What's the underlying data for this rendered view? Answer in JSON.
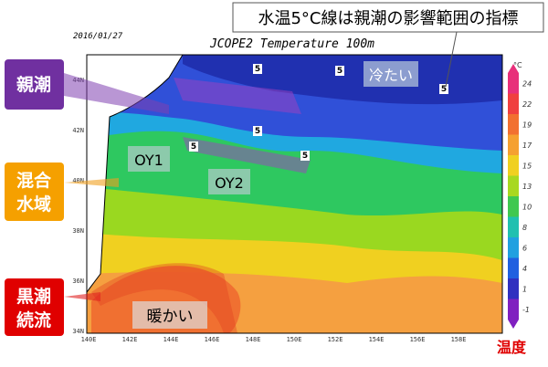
{
  "date": "2016/01/27",
  "title": "JCOPE2 Temperature 100m",
  "callout": "水温5°C線は親潮の影響範囲の指標",
  "labels": {
    "oyashio": "親潮",
    "mixed": [
      "混合",
      "水域"
    ],
    "kuroshio": [
      "黒潮",
      "続流"
    ],
    "cold": "冷たい",
    "warm": "暖かい",
    "oy1": "OY1",
    "oy2": "OY2"
  },
  "colorbar": {
    "unit": "°C",
    "ticks": [
      24,
      22,
      19,
      17,
      15,
      13,
      10,
      8,
      6,
      4,
      1,
      -1
    ],
    "caption": "温度"
  },
  "axes": {
    "lat": [
      "44N",
      "42N",
      "40N",
      "38N",
      "36N",
      "34N"
    ],
    "lon": [
      "140E",
      "142E",
      "144E",
      "146E",
      "148E",
      "150E",
      "152E",
      "154E",
      "156E",
      "158E"
    ]
  },
  "contour_labels": [
    "5",
    "5",
    "5",
    "5",
    "5",
    "5"
  ]
}
